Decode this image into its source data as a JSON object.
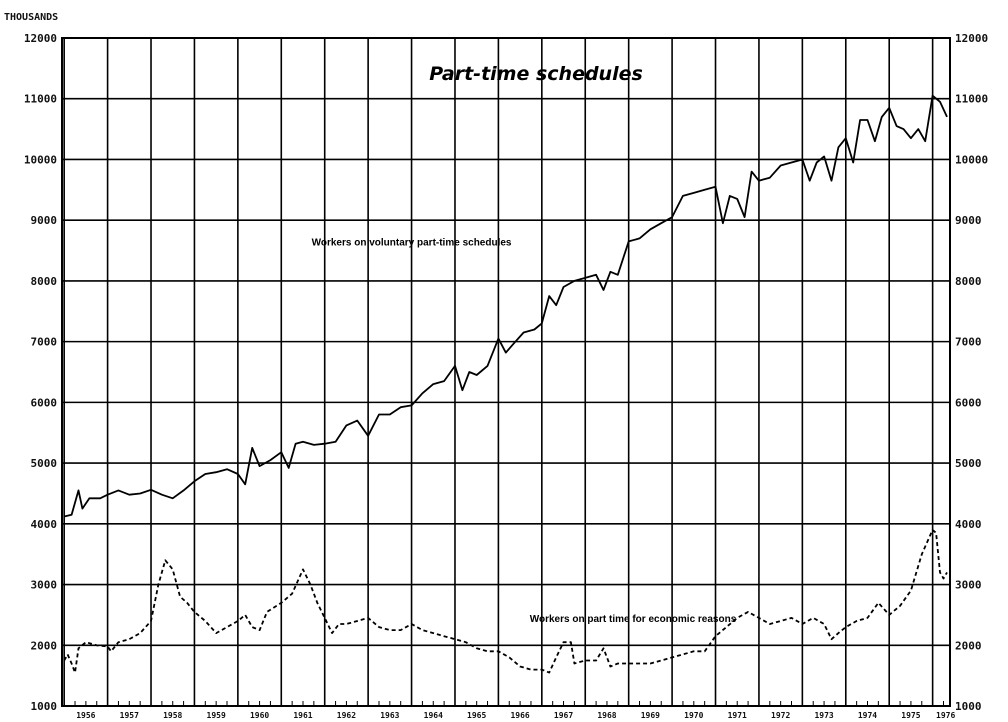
{
  "chart_data": {
    "type": "line",
    "title": "Part-time schedules",
    "unit_label": "THOUSANDS",
    "xlabel": "",
    "ylabel": "",
    "xlim": [
      1955.95,
      1976.4
    ],
    "ylim": [
      1000,
      12000
    ],
    "y_ticks": [
      1000,
      2000,
      3000,
      4000,
      5000,
      6000,
      7000,
      8000,
      9000,
      10000,
      11000,
      12000
    ],
    "x_tick_labels": [
      "1956",
      "1957",
      "1958",
      "1959",
      "1960",
      "1961",
      "1962",
      "1963",
      "1964",
      "1965",
      "1966",
      "1967",
      "1968",
      "1969",
      "1970",
      "1971",
      "1972",
      "1973",
      "1974",
      "1975",
      "1976"
    ],
    "grid": true,
    "series": [
      {
        "name": "Workers on voluntary part-time schedules",
        "style": "solid",
        "points": [
          [
            1956.0,
            4120
          ],
          [
            1956.17,
            4150
          ],
          [
            1956.33,
            4550
          ],
          [
            1956.42,
            4250
          ],
          [
            1956.58,
            4420
          ],
          [
            1956.83,
            4420
          ],
          [
            1957.0,
            4480
          ],
          [
            1957.25,
            4550
          ],
          [
            1957.5,
            4480
          ],
          [
            1957.75,
            4500
          ],
          [
            1958.0,
            4560
          ],
          [
            1958.25,
            4480
          ],
          [
            1958.5,
            4420
          ],
          [
            1958.75,
            4550
          ],
          [
            1959.0,
            4700
          ],
          [
            1959.25,
            4820
          ],
          [
            1959.5,
            4850
          ],
          [
            1959.75,
            4900
          ],
          [
            1960.0,
            4820
          ],
          [
            1960.17,
            4650
          ],
          [
            1960.33,
            5250
          ],
          [
            1960.5,
            4950
          ],
          [
            1960.75,
            5050
          ],
          [
            1961.0,
            5180
          ],
          [
            1961.17,
            4920
          ],
          [
            1961.33,
            5320
          ],
          [
            1961.5,
            5350
          ],
          [
            1961.75,
            5300
          ],
          [
            1962.0,
            5320
          ],
          [
            1962.25,
            5350
          ],
          [
            1962.5,
            5620
          ],
          [
            1962.75,
            5700
          ],
          [
            1963.0,
            5450
          ],
          [
            1963.25,
            5800
          ],
          [
            1963.5,
            5800
          ],
          [
            1963.75,
            5920
          ],
          [
            1964.0,
            5950
          ],
          [
            1964.25,
            6150
          ],
          [
            1964.5,
            6300
          ],
          [
            1964.75,
            6350
          ],
          [
            1965.0,
            6600
          ],
          [
            1965.17,
            6200
          ],
          [
            1965.33,
            6500
          ],
          [
            1965.5,
            6450
          ],
          [
            1965.75,
            6600
          ],
          [
            1966.0,
            7050
          ],
          [
            1966.17,
            6820
          ],
          [
            1966.33,
            6950
          ],
          [
            1966.58,
            7150
          ],
          [
            1966.83,
            7200
          ],
          [
            1967.0,
            7300
          ],
          [
            1967.17,
            7750
          ],
          [
            1967.33,
            7600
          ],
          [
            1967.5,
            7900
          ],
          [
            1967.75,
            8000
          ],
          [
            1968.0,
            8050
          ],
          [
            1968.25,
            8100
          ],
          [
            1968.42,
            7850
          ],
          [
            1968.58,
            8150
          ],
          [
            1968.75,
            8100
          ],
          [
            1969.0,
            8650
          ],
          [
            1969.25,
            8700
          ],
          [
            1969.5,
            8850
          ],
          [
            1969.75,
            8950
          ],
          [
            1970.0,
            9050
          ],
          [
            1970.25,
            9400
          ],
          [
            1970.5,
            9450
          ],
          [
            1970.75,
            9500
          ],
          [
            1971.0,
            9550
          ],
          [
            1971.17,
            8950
          ],
          [
            1971.33,
            9400
          ],
          [
            1971.5,
            9350
          ],
          [
            1971.67,
            9050
          ],
          [
            1971.83,
            9800
          ],
          [
            1972.0,
            9650
          ],
          [
            1972.25,
            9700
          ],
          [
            1972.5,
            9900
          ],
          [
            1972.75,
            9950
          ],
          [
            1973.0,
            10000
          ],
          [
            1973.17,
            9650
          ],
          [
            1973.33,
            9950
          ],
          [
            1973.5,
            10050
          ],
          [
            1973.67,
            9650
          ],
          [
            1973.83,
            10200
          ],
          [
            1974.0,
            10350
          ],
          [
            1974.17,
            9950
          ],
          [
            1974.33,
            10650
          ],
          [
            1974.5,
            10650
          ],
          [
            1974.67,
            10300
          ],
          [
            1974.83,
            10700
          ],
          [
            1975.0,
            10850
          ],
          [
            1975.17,
            10550
          ],
          [
            1975.33,
            10500
          ],
          [
            1975.5,
            10350
          ],
          [
            1975.67,
            10500
          ],
          [
            1975.83,
            10300
          ],
          [
            1976.0,
            11050
          ],
          [
            1976.17,
            10950
          ],
          [
            1976.33,
            10700
          ]
        ]
      },
      {
        "name": "Workers on part time for economic reasons",
        "style": "dashed",
        "points": [
          [
            1956.0,
            1750
          ],
          [
            1956.08,
            1850
          ],
          [
            1956.17,
            1700
          ],
          [
            1956.25,
            1550
          ],
          [
            1956.33,
            1950
          ],
          [
            1956.5,
            2050
          ],
          [
            1956.75,
            2000
          ],
          [
            1957.0,
            1980
          ],
          [
            1957.08,
            1900
          ],
          [
            1957.25,
            2050
          ],
          [
            1957.5,
            2100
          ],
          [
            1957.75,
            2200
          ],
          [
            1958.0,
            2400
          ],
          [
            1958.17,
            3000
          ],
          [
            1958.33,
            3400
          ],
          [
            1958.5,
            3250
          ],
          [
            1958.67,
            2800
          ],
          [
            1958.83,
            2700
          ],
          [
            1959.0,
            2550
          ],
          [
            1959.25,
            2400
          ],
          [
            1959.5,
            2200
          ],
          [
            1959.75,
            2300
          ],
          [
            1960.0,
            2400
          ],
          [
            1960.17,
            2500
          ],
          [
            1960.33,
            2300
          ],
          [
            1960.5,
            2250
          ],
          [
            1960.67,
            2550
          ],
          [
            1961.0,
            2700
          ],
          [
            1961.25,
            2850
          ],
          [
            1961.5,
            3250
          ],
          [
            1961.67,
            3000
          ],
          [
            1961.83,
            2700
          ],
          [
            1962.0,
            2450
          ],
          [
            1962.17,
            2200
          ],
          [
            1962.33,
            2350
          ],
          [
            1962.5,
            2350
          ],
          [
            1962.75,
            2400
          ],
          [
            1963.0,
            2450
          ],
          [
            1963.25,
            2300
          ],
          [
            1963.5,
            2250
          ],
          [
            1963.75,
            2250
          ],
          [
            1964.0,
            2350
          ],
          [
            1964.25,
            2250
          ],
          [
            1964.5,
            2200
          ],
          [
            1964.75,
            2150
          ],
          [
            1965.0,
            2100
          ],
          [
            1965.25,
            2050
          ],
          [
            1965.5,
            1950
          ],
          [
            1965.75,
            1900
          ],
          [
            1966.0,
            1900
          ],
          [
            1966.25,
            1800
          ],
          [
            1966.5,
            1650
          ],
          [
            1966.75,
            1600
          ],
          [
            1967.0,
            1600
          ],
          [
            1967.17,
            1550
          ],
          [
            1967.33,
            1800
          ],
          [
            1967.5,
            2050
          ],
          [
            1967.67,
            2050
          ],
          [
            1967.75,
            1700
          ],
          [
            1968.0,
            1750
          ],
          [
            1968.25,
            1750
          ],
          [
            1968.42,
            1950
          ],
          [
            1968.58,
            1650
          ],
          [
            1968.75,
            1700
          ],
          [
            1969.0,
            1700
          ],
          [
            1969.25,
            1700
          ],
          [
            1969.5,
            1700
          ],
          [
            1969.75,
            1750
          ],
          [
            1970.0,
            1800
          ],
          [
            1970.25,
            1850
          ],
          [
            1970.5,
            1900
          ],
          [
            1970.75,
            1900
          ],
          [
            1971.0,
            2150
          ],
          [
            1971.25,
            2300
          ],
          [
            1971.5,
            2450
          ],
          [
            1971.75,
            2550
          ],
          [
            1972.0,
            2450
          ],
          [
            1972.25,
            2350
          ],
          [
            1972.5,
            2400
          ],
          [
            1972.75,
            2450
          ],
          [
            1973.0,
            2350
          ],
          [
            1973.25,
            2450
          ],
          [
            1973.5,
            2350
          ],
          [
            1973.67,
            2100
          ],
          [
            1973.83,
            2200
          ],
          [
            1974.0,
            2300
          ],
          [
            1974.25,
            2400
          ],
          [
            1974.5,
            2450
          ],
          [
            1974.75,
            2700
          ],
          [
            1975.0,
            2500
          ],
          [
            1975.25,
            2650
          ],
          [
            1975.5,
            2900
          ],
          [
            1975.75,
            3500
          ],
          [
            1976.0,
            3900
          ],
          [
            1976.08,
            3850
          ],
          [
            1976.17,
            3200
          ],
          [
            1976.25,
            3100
          ],
          [
            1976.33,
            3200
          ]
        ]
      }
    ],
    "annotations": [
      {
        "text": "Workers on voluntary part-time schedules",
        "x": 1964.0,
        "y": 8580
      },
      {
        "text": "Workers on part time for economic reasons",
        "x": 1969.1,
        "y": 2380
      }
    ]
  }
}
